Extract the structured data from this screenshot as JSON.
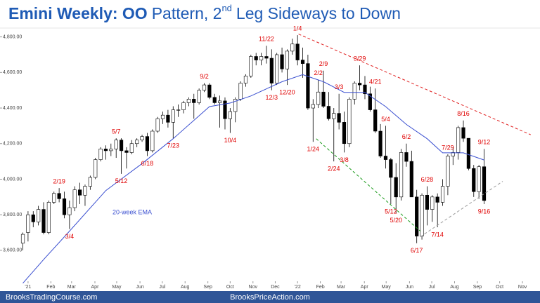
{
  "chart_data": {
    "type": "candlestick",
    "title": {
      "bold": "Emini Weekly: OO",
      "text": "Pattern, 2",
      "sup": "nd",
      "end": "Leg Sideways to Down"
    },
    "title_color": "#1f5bb5",
    "candles": {
      "x": [
        -1,
        0,
        1,
        2,
        3,
        4,
        5,
        6,
        7,
        8,
        9,
        10,
        11,
        12,
        13,
        14,
        15,
        16,
        17,
        18,
        19,
        20,
        21,
        22,
        23,
        24,
        25,
        26,
        27,
        28,
        29,
        30,
        31,
        32,
        33,
        34,
        35,
        36,
        37,
        38,
        39,
        40,
        41,
        42,
        43,
        44,
        45,
        46,
        47,
        48,
        49,
        50,
        51,
        52,
        53,
        54,
        55,
        56,
        57,
        58,
        59,
        60,
        61,
        62,
        63,
        64,
        65,
        66,
        67,
        68,
        69,
        70,
        71,
        72,
        73,
        74,
        75,
        76,
        77,
        78,
        79,
        80,
        81,
        82,
        83,
        84,
        85,
        86,
        87,
        88
      ],
      "open": [
        3640,
        3700,
        3800,
        3760,
        3830,
        3700,
        3870,
        3920,
        3890,
        3800,
        3840,
        3940,
        3910,
        3960,
        4010,
        4110,
        4170,
        4160,
        4170,
        4220,
        4160,
        4150,
        4200,
        4220,
        4240,
        4160,
        4270,
        4340,
        4360,
        4320,
        4390,
        4390,
        4430,
        4450,
        4430,
        4500,
        4530,
        4460,
        4430,
        4440,
        4340,
        4380,
        4450,
        4540,
        4580,
        4690,
        4670,
        4690,
        4680,
        4540,
        4700,
        4620,
        4720,
        4760,
        4670,
        4650,
        4400,
        4420,
        4490,
        4410,
        4340,
        4370,
        4320,
        4200,
        4450,
        4540,
        4530,
        4480,
        4390,
        4270,
        4130,
        4110,
        4010,
        3900,
        4150,
        4100,
        3900,
        3680,
        3910,
        3830,
        3900,
        3870,
        3960,
        4130,
        4150,
        4290,
        4230,
        4060,
        3930,
        4070
      ],
      "high": [
        3700,
        3820,
        3820,
        3850,
        3870,
        3880,
        3930,
        3950,
        3930,
        3880,
        3960,
        3980,
        3970,
        4020,
        4120,
        4180,
        4190,
        4200,
        4230,
        4230,
        4180,
        4220,
        4230,
        4250,
        4260,
        4280,
        4350,
        4380,
        4390,
        4410,
        4420,
        4440,
        4460,
        4480,
        4510,
        4540,
        4540,
        4480,
        4470,
        4460,
        4400,
        4460,
        4550,
        4590,
        4700,
        4710,
        4710,
        4750,
        4730,
        4710,
        4740,
        4730,
        4790,
        4810,
        4740,
        4700,
        4450,
        4560,
        4610,
        4490,
        4400,
        4480,
        4380,
        4460,
        4550,
        4640,
        4580,
        4520,
        4510,
        4310,
        4300,
        4120,
        4090,
        4170,
        4200,
        4160,
        3940,
        3920,
        3960,
        3910,
        3920,
        4000,
        4140,
        4180,
        4300,
        4330,
        4230,
        4080,
        4080,
        4170
      ],
      "low": [
        3600,
        3650,
        3730,
        3740,
        3690,
        3690,
        3860,
        3870,
        3780,
        3720,
        3820,
        3860,
        3850,
        3940,
        4000,
        4100,
        4110,
        4130,
        4120,
        4030,
        4060,
        4140,
        4180,
        4210,
        4130,
        4150,
        4260,
        4310,
        4290,
        4230,
        4350,
        4370,
        4410,
        4340,
        4420,
        4490,
        4450,
        4420,
        4290,
        4280,
        4260,
        4320,
        4440,
        4520,
        4570,
        4640,
        4640,
        4650,
        4500,
        4530,
        4600,
        4530,
        4700,
        4640,
        4570,
        4390,
        4210,
        4400,
        4400,
        4330,
        4100,
        4280,
        4150,
        4180,
        4420,
        4500,
        4450,
        4380,
        4260,
        4120,
        4060,
        3860,
        3810,
        3880,
        4070,
        3900,
        3640,
        3660,
        3740,
        3760,
        3730,
        3850,
        3910,
        4080,
        4110,
        4210,
        4050,
        3900,
        3890,
        3860
      ],
      "close": [
        3690,
        3800,
        3760,
        3830,
        3700,
        3870,
        3920,
        3890,
        3800,
        3840,
        3940,
        3910,
        3960,
        4010,
        4110,
        4170,
        4160,
        4170,
        4220,
        4160,
        4150,
        4200,
        4220,
        4240,
        4160,
        4270,
        4340,
        4360,
        4320,
        4390,
        4390,
        4430,
        4450,
        4430,
        4500,
        4530,
        4460,
        4430,
        4440,
        4340,
        4380,
        4450,
        4540,
        4580,
        4690,
        4670,
        4690,
        4680,
        4540,
        4700,
        4620,
        4720,
        4760,
        4670,
        4650,
        4400,
        4420,
        4490,
        4410,
        4340,
        4370,
        4320,
        4200,
        4450,
        4540,
        4530,
        4480,
        4390,
        4270,
        4130,
        4110,
        4010,
        3900,
        4150,
        4100,
        3900,
        3680,
        3910,
        3830,
        3900,
        3870,
        3960,
        4130,
        4150,
        4290,
        4230,
        4060,
        3930,
        4070,
        3880
      ],
      "up_color": "#ffffff",
      "down_color": "#000000",
      "outline": "#000000"
    },
    "annotations": [
      {
        "text": "2/19",
        "index": 7,
        "at": "high"
      },
      {
        "text": "3/4",
        "index": 9,
        "at": "low"
      },
      {
        "text": "5/7",
        "index": 18,
        "at": "high"
      },
      {
        "text": "5/12",
        "index": 19,
        "at": "low"
      },
      {
        "text": "6/18",
        "index": 24,
        "at": "low"
      },
      {
        "text": "7/23",
        "index": 29,
        "at": "low"
      },
      {
        "text": "9/2",
        "index": 35,
        "at": "high"
      },
      {
        "text": "10/4",
        "index": 40,
        "at": "low"
      },
      {
        "text": "11/22",
        "index": 47,
        "at": "high"
      },
      {
        "text": "12/3",
        "index": 48,
        "at": "low"
      },
      {
        "text": "12/20",
        "index": 51,
        "at": "low"
      },
      {
        "text": "1/4",
        "index": 53,
        "at": "high"
      },
      {
        "text": "1/24",
        "index": 56,
        "at": "low"
      },
      {
        "text": "2/2",
        "index": 57,
        "at": "high"
      },
      {
        "text": "2/9",
        "index": 58,
        "at": "high"
      },
      {
        "text": "2/24",
        "index": 60,
        "at": "low"
      },
      {
        "text": "3/3",
        "index": 61,
        "at": "high"
      },
      {
        "text": "3/8",
        "index": 62,
        "at": "low"
      },
      {
        "text": "3/29",
        "index": 65,
        "at": "high"
      },
      {
        "text": "4/21",
        "index": 68,
        "at": "high"
      },
      {
        "text": "5/4",
        "index": 70,
        "at": "high"
      },
      {
        "text": "5/12",
        "index": 71,
        "at": "low"
      },
      {
        "text": "5/20",
        "index": 72,
        "at": "low"
      },
      {
        "text": "6/2",
        "index": 74,
        "at": "high"
      },
      {
        "text": "6/17",
        "index": 76,
        "at": "low"
      },
      {
        "text": "6/28",
        "index": 78,
        "at": "high"
      },
      {
        "text": "7/14",
        "index": 80,
        "at": "low"
      },
      {
        "text": "7/29",
        "index": 82,
        "at": "high"
      },
      {
        "text": "8/16",
        "index": 85,
        "at": "high"
      },
      {
        "text": "9/12",
        "index": 89,
        "at": "high"
      },
      {
        "text": "9/16",
        "index": 89,
        "at": "low"
      }
    ],
    "annotation_color": "#e00000",
    "ema": {
      "name": "20-week EMA",
      "color": "#3a4fd0",
      "x": [
        -1,
        3,
        8,
        15,
        22,
        28,
        35,
        39,
        43,
        49,
        53,
        57,
        61,
        65,
        69,
        73,
        77,
        80,
        84,
        88
      ],
      "values": [
        3415,
        3548,
        3708,
        3936,
        4088,
        4228,
        4408,
        4428,
        4468,
        4548,
        4588,
        4548,
        4488,
        4488,
        4408,
        4308,
        4228,
        4148,
        4148,
        4108
      ]
    },
    "trendlines": [
      {
        "x": [
          52.2,
          97
        ],
        "y": [
          4816,
          4250
        ],
        "color": "#e02020"
      },
      {
        "x": [
          55.6,
          75.7
        ],
        "y": [
          4228,
          3708
        ],
        "color": "#1a9a1a"
      },
      {
        "x": [
          75.7,
          91.6
        ],
        "y": [
          3676,
          3988
        ],
        "color": "#9a9a9a"
      }
    ],
    "xlim": [
      -2.7,
      97.7
    ],
    "ylim": [
      3430,
      4830
    ],
    "yticks": [
      {
        "value": 3600,
        "label": "3,600.00"
      },
      {
        "value": 3800,
        "label": "3,800.00"
      },
      {
        "value": 4000,
        "label": "4,000.00"
      },
      {
        "value": 4200,
        "label": "4,200.00"
      },
      {
        "value": 4400,
        "label": "4,400.00"
      },
      {
        "value": 4600,
        "label": "4,600.00"
      },
      {
        "value": 4800,
        "label": "4,800.00"
      }
    ],
    "xticks": [
      {
        "value": 0,
        "label": "'21"
      },
      {
        "value": 4.4,
        "label": "Feb"
      },
      {
        "value": 8.4,
        "label": "Mar"
      },
      {
        "value": 12.9,
        "label": "Apr"
      },
      {
        "value": 17.1,
        "label": "May"
      },
      {
        "value": 21.6,
        "label": "Jun"
      },
      {
        "value": 25.9,
        "label": "Jul"
      },
      {
        "value": 30.3,
        "label": "Aug"
      },
      {
        "value": 34.7,
        "label": "Sep"
      },
      {
        "value": 39,
        "label": "Oct"
      },
      {
        "value": 43.4,
        "label": "Nov"
      },
      {
        "value": 47.7,
        "label": "Dec"
      },
      {
        "value": 52,
        "label": "'22"
      },
      {
        "value": 56.4,
        "label": "Feb"
      },
      {
        "value": 60.4,
        "label": "Mar"
      },
      {
        "value": 64.9,
        "label": "Apr"
      },
      {
        "value": 69.1,
        "label": "May"
      },
      {
        "value": 73.6,
        "label": "Jun"
      },
      {
        "value": 77.9,
        "label": "Jul"
      },
      {
        "value": 82.3,
        "label": "Aug"
      },
      {
        "value": 86.7,
        "label": "Sep"
      },
      {
        "value": 91,
        "label": "Oct"
      },
      {
        "value": 95.4,
        "label": "Nov"
      }
    ],
    "grid": false
  },
  "footer": {
    "left": "BrooksTradingCourse.com",
    "center": "BrooksPriceAction.com",
    "color": "#2f5597"
  }
}
